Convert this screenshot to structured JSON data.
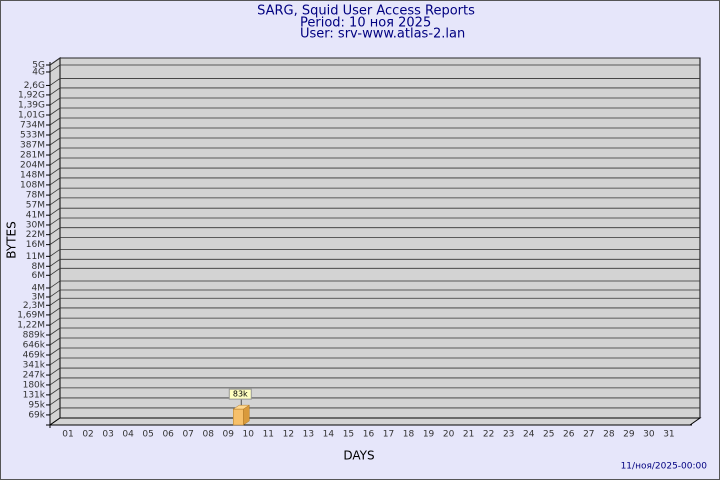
{
  "chart_data": {
    "type": "bar",
    "title": "SARG, Squid User Access Reports",
    "subtitle": [
      "Period: 10 ноя 2025",
      "User: srv-www.atlas-2.lan"
    ],
    "y_label": "BYTES",
    "x_label": "DAYS",
    "footer": "11/ноя/2025-00:00",
    "log_scale": true,
    "grid": true,
    "color": "#f7c06a",
    "categories": [
      "01",
      "02",
      "03",
      "04",
      "05",
      "06",
      "07",
      "08",
      "09",
      "10",
      "11",
      "12",
      "13",
      "14",
      "15",
      "16",
      "17",
      "18",
      "19",
      "20",
      "21",
      "22",
      "23",
      "24",
      "25",
      "26",
      "27",
      "28",
      "29",
      "30",
      "31"
    ],
    "values": [
      null,
      null,
      null,
      null,
      null,
      null,
      null,
      null,
      null,
      83000,
      null,
      null,
      null,
      null,
      null,
      null,
      null,
      null,
      null,
      null,
      null,
      null,
      null,
      null,
      null,
      null,
      null,
      null,
      null,
      null,
      null
    ],
    "value_labels": [
      null,
      null,
      null,
      null,
      null,
      null,
      null,
      null,
      null,
      "83k",
      null,
      null,
      null,
      null,
      null,
      null,
      null,
      null,
      null,
      null,
      null,
      null,
      null,
      null,
      null,
      null,
      null,
      null,
      null,
      null,
      null
    ],
    "ylim": [
      50000,
      5000000000
    ],
    "yticks": [
      {
        "value": 69000,
        "label": "69k"
      },
      {
        "value": 95000,
        "label": "95k"
      },
      {
        "value": 131000,
        "label": "131k"
      },
      {
        "value": 180000,
        "label": "180k"
      },
      {
        "value": 247000,
        "label": "247k"
      },
      {
        "value": 341000,
        "label": "341k"
      },
      {
        "value": 469000,
        "label": "469k"
      },
      {
        "value": 646000,
        "label": "646k"
      },
      {
        "value": 889000,
        "label": "889k"
      },
      {
        "value": 1220000,
        "label": "1,22M"
      },
      {
        "value": 1690000,
        "label": "1,69M"
      },
      {
        "value": 2300000,
        "label": "2,3M"
      },
      {
        "value": 3000000,
        "label": "3M"
      },
      {
        "value": 4000000,
        "label": "4M"
      },
      {
        "value": 6000000,
        "label": "6M"
      },
      {
        "value": 8000000,
        "label": "8M"
      },
      {
        "value": 11000000,
        "label": "11M"
      },
      {
        "value": 16000000,
        "label": "16M"
      },
      {
        "value": 22000000,
        "label": "22M"
      },
      {
        "value": 30000000,
        "label": "30M"
      },
      {
        "value": 41000000,
        "label": "41M"
      },
      {
        "value": 57000000,
        "label": "57M"
      },
      {
        "value": 78000000,
        "label": "78M"
      },
      {
        "value": 108000000,
        "label": "108M"
      },
      {
        "value": 148000000,
        "label": "148M"
      },
      {
        "value": 204000000,
        "label": "204M"
      },
      {
        "value": 281000000,
        "label": "281M"
      },
      {
        "value": 387000000,
        "label": "387M"
      },
      {
        "value": 533000000,
        "label": "533M"
      },
      {
        "value": 734000000,
        "label": "734M"
      },
      {
        "value": 1010000000,
        "label": "1,01G"
      },
      {
        "value": 1390000000,
        "label": "1,39G"
      },
      {
        "value": 1920000000,
        "label": "1,92G"
      },
      {
        "value": 2600000000,
        "label": "2,6G"
      },
      {
        "value": 4000000000,
        "label": "4G"
      },
      {
        "value": 5000000000,
        "label": "5G"
      }
    ]
  }
}
